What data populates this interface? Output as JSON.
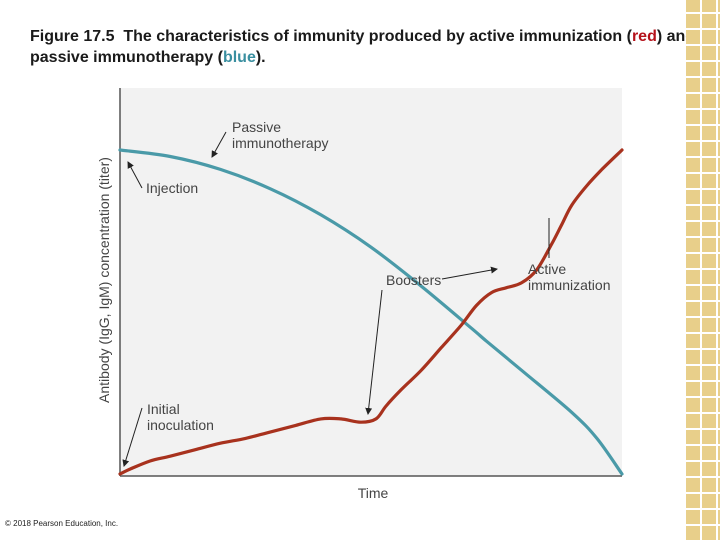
{
  "caption": {
    "prefix": "Figure 17.5",
    "text_before_red": "The characteristics of immunity produced by active immunization (",
    "red_word": "red",
    "text_between": ") and passive immunotherapy (",
    "blue_word": "blue",
    "text_after": ")."
  },
  "copyright": "© 2018 Pearson Education, Inc.",
  "colors": {
    "active": "#a8321e",
    "passive": "#4a9aa8",
    "plot_background": "#f2f2f2",
    "axis": "#555555",
    "red": "#b5121b",
    "blue": "#3a8fa0"
  },
  "chart_data": {
    "type": "line",
    "xlabel": "Time",
    "ylabel": "Antibody (IgG, IgM) concentration (titer)",
    "xlim": [
      0,
      100
    ],
    "ylim": [
      0,
      100
    ],
    "grid": false,
    "series": [
      {
        "name": "Passive immunotherapy",
        "color": "#4a9aa8",
        "x": [
          0,
          10,
          20,
          30,
          40,
          50,
          60,
          70,
          73,
          80,
          90,
          95,
          100
        ],
        "y": [
          100,
          98,
          94,
          88,
          80,
          70,
          58,
          45,
          41,
          32,
          19,
          11,
          0
        ]
      },
      {
        "name": "Active immunization",
        "color": "#a8321e",
        "x": [
          0,
          2,
          6,
          10,
          15,
          20,
          25,
          30,
          35,
          40,
          44,
          48,
          51,
          53,
          56,
          60,
          64,
          68,
          71,
          74,
          77,
          80,
          83,
          86,
          88,
          90,
          93,
          96,
          100
        ],
        "y": [
          0,
          1.5,
          4,
          5.5,
          7.5,
          9.5,
          11,
          13,
          15,
          17,
          17,
          16,
          17,
          21,
          26,
          32,
          39,
          46,
          52,
          56,
          57.5,
          59,
          63,
          71,
          77,
          83,
          89,
          94,
          100
        ]
      }
    ],
    "annotations": [
      {
        "text": [
          "Passive",
          "immunotherapy"
        ],
        "target_x": 18,
        "target_y": 95
      },
      {
        "text": [
          "Injection"
        ],
        "target_x": 1,
        "target_y": 95
      },
      {
        "text": [
          "Boosters"
        ],
        "target_x": 49,
        "target_y": 17
      },
      {
        "text": [
          "Active",
          "immunization"
        ],
        "target_x": 85,
        "target_y": 67
      },
      {
        "text": [
          "Initial",
          "inoculation"
        ],
        "target_x": 0.5,
        "target_y": 1.5
      }
    ]
  }
}
